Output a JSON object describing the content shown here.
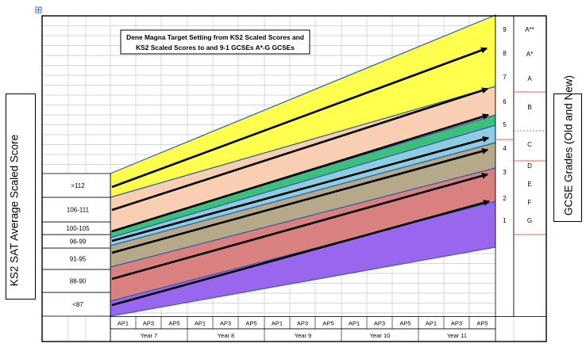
{
  "title": {
    "line1": "Dene Magna Target Setting from KS2 Scaled Scores and",
    "line2": "KS2 Scaled Scores to and 9-1 GCSEs A*-G GCSEs"
  },
  "left_axis_title": "KS2 SAT Average Scaled Score",
  "right_axis_title": "GCSE Grades (Old and New)",
  "ks2_bands": [
    "<87",
    "88-90",
    "91-95",
    "96-99",
    "100-105",
    "106-111",
    ">112"
  ],
  "new_grades": [
    "1",
    "2",
    "3",
    "4",
    "5",
    "6",
    "7",
    "8",
    "9"
  ],
  "old_grades": [
    "G",
    "F",
    "E",
    "D",
    "C",
    "B",
    "A",
    "A*",
    "A**"
  ],
  "assessment_points": [
    "AP1",
    "AP3",
    "AP5"
  ],
  "years": [
    "Year 7",
    "Year 8",
    "Year 9",
    "Year 10",
    "Year 11"
  ],
  "colors": {
    "yellow": "#ffff4d",
    "peach": "#f8cfb2",
    "green": "#3cbf7c",
    "blue": "#8ccde3",
    "tan": "#b5a98a",
    "red": "#d98080",
    "purple": "#9966ee",
    "divider_red": "#e06060",
    "divider_green": "#3cb371"
  }
}
